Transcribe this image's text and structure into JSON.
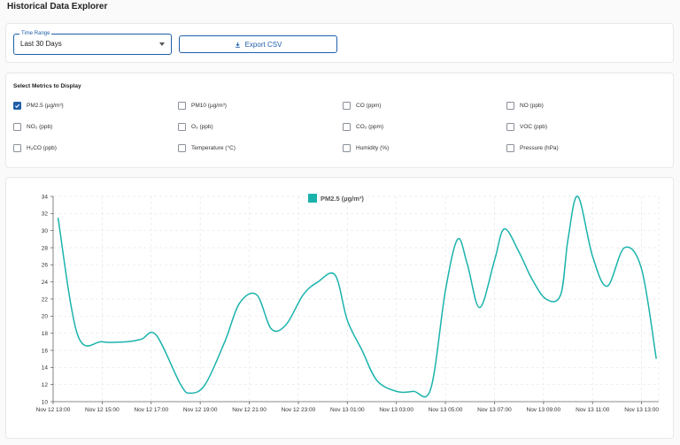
{
  "page": {
    "title": "Historical Data Explorer"
  },
  "controls": {
    "time_range_label": "Time Range",
    "time_range_value": "Last 30 Days",
    "export_label": "Export CSV"
  },
  "metrics": {
    "title": "Select Metrics to Display",
    "items": [
      {
        "label": "PM2.5 (µg/m³)",
        "checked": true
      },
      {
        "label": "PM10 (µg/m³)",
        "checked": false
      },
      {
        "label": "CO (ppm)",
        "checked": false
      },
      {
        "label": "NO (ppb)",
        "checked": false
      },
      {
        "label": "NO₂ (ppb)",
        "checked": false
      },
      {
        "label": "O₃ (ppb)",
        "checked": false
      },
      {
        "label": "CO₂ (ppm)",
        "checked": false
      },
      {
        "label": "VOC (ppb)",
        "checked": false
      },
      {
        "label": "H₂CO (ppb)",
        "checked": false
      },
      {
        "label": "Temperature (°C)",
        "checked": false
      },
      {
        "label": "Humidity (%)",
        "checked": false
      },
      {
        "label": "Pressure (hPa)",
        "checked": false
      }
    ]
  },
  "colors": {
    "accent": "#1f5fa8",
    "series": "#1ab3ac"
  },
  "chart_data": {
    "type": "line",
    "legend": "top-center",
    "grid": true,
    "ylim": [
      10,
      34
    ],
    "yticks": [
      10,
      12,
      14,
      16,
      18,
      20,
      22,
      24,
      26,
      28,
      30,
      32,
      34
    ],
    "xlim_hours": [
      0,
      24.7
    ],
    "xticks": [
      {
        "h": 0,
        "label": "Nov 12 13:00"
      },
      {
        "h": 2,
        "label": "Nov 12 15:00"
      },
      {
        "h": 4,
        "label": "Nov 12 17:00"
      },
      {
        "h": 6,
        "label": "Nov 12 19:00"
      },
      {
        "h": 8,
        "label": "Nov 12 21:00"
      },
      {
        "h": 10,
        "label": "Nov 12 23:00"
      },
      {
        "h": 12,
        "label": "Nov 13 01:00"
      },
      {
        "h": 14,
        "label": "Nov 13 03:00"
      },
      {
        "h": 16,
        "label": "Nov 13 05:00"
      },
      {
        "h": 18,
        "label": "Nov 13 07:00"
      },
      {
        "h": 20,
        "label": "Nov 13 09:00"
      },
      {
        "h": 22,
        "label": "Nov 13 11:00"
      },
      {
        "h": 24,
        "label": "Nov 13 13:00"
      }
    ],
    "series": [
      {
        "name": "PM2.5 (µg/m³)",
        "x": [
          0.2,
          1.0,
          2.0,
          3.0,
          3.6,
          4.2,
          5.2,
          5.6,
          6.2,
          7.0,
          7.6,
          8.3,
          8.9,
          9.5,
          10.2,
          10.8,
          11.5,
          12.0,
          12.6,
          13.2,
          14.0,
          14.7,
          15.4,
          16.0,
          16.5,
          16.9,
          17.4,
          18.0,
          18.4,
          19.0,
          19.5,
          20.1,
          20.7,
          21.0,
          21.4,
          22.0,
          22.6,
          23.3,
          24.0,
          24.6
        ],
        "y": [
          31.5,
          17.8,
          17.0,
          17.0,
          17.3,
          17.8,
          12.0,
          11.0,
          12.0,
          17.0,
          21.5,
          22.5,
          18.5,
          19.0,
          22.5,
          24.0,
          24.8,
          19.5,
          16.0,
          12.5,
          11.2,
          11.2,
          11.5,
          23.0,
          29.0,
          26.0,
          21.0,
          26.5,
          30.2,
          27.5,
          24.5,
          22.0,
          22.5,
          29.0,
          34.0,
          27.0,
          23.5,
          28.0,
          25.5,
          15.0
        ]
      }
    ]
  }
}
